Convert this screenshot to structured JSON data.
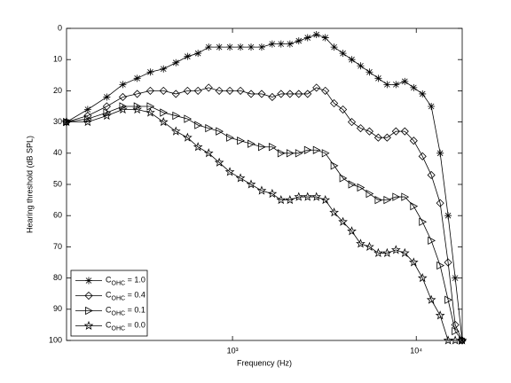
{
  "chart_data": {
    "type": "line",
    "xlabel": "Frequency (Hz)",
    "ylabel": "Hearing threshold (dB SPL)",
    "x": [
      125,
      163,
      207,
      253,
      303,
      357,
      421,
      492,
      569,
      649,
      742,
      847,
      967,
      1105,
      1262,
      1441,
      1645,
      1837,
      2054,
      2294,
      2563,
      2863,
      3199,
      3572,
      3990,
      4457,
      4978,
      5561,
      6212,
      6938,
      7750,
      8660,
      9680,
      10810,
      12070,
      13490,
      14900,
      16290,
      17780
    ],
    "series": [
      {
        "name": "COHC = 1.0",
        "color": "#000000",
        "marker": "asterisk",
        "values": [
          30,
          26,
          22,
          18,
          16,
          14,
          13,
          11,
          9,
          8,
          6,
          6,
          6,
          6,
          6,
          6,
          5,
          5,
          5,
          4,
          3,
          2,
          3,
          6,
          8,
          10,
          12,
          14,
          16,
          18,
          18,
          17,
          19,
          21,
          25,
          40,
          60,
          80,
          100
        ]
      },
      {
        "name": "COHC = 0.4",
        "color": "#000000",
        "marker": "diamond",
        "values": [
          30,
          28,
          25,
          22,
          21,
          20,
          20,
          21,
          20,
          20,
          19,
          20,
          20,
          20,
          21,
          21,
          22,
          21,
          21,
          21,
          21,
          19,
          20,
          24,
          26,
          30,
          32,
          33,
          35,
          35,
          33,
          33,
          36,
          41,
          47,
          56,
          75,
          95,
          100
        ]
      },
      {
        "name": "COHC = 0.1",
        "color": "#000000",
        "marker": "triangle-right",
        "values": [
          30,
          29,
          27,
          25,
          25,
          25,
          27,
          28,
          29,
          31,
          32,
          33,
          35,
          36,
          37,
          38,
          38,
          40,
          40,
          40,
          39,
          39,
          40,
          44,
          48,
          50,
          51,
          53,
          55,
          55,
          54,
          54,
          57,
          62,
          68,
          76,
          87,
          97,
          100
        ]
      },
      {
        "name": "COHC = 0.0",
        "color": "#000000",
        "marker": "pentagram",
        "values": [
          30,
          30,
          28,
          26,
          26,
          27,
          30,
          33,
          35,
          38,
          40,
          43,
          46,
          48,
          50,
          52,
          53,
          55,
          55,
          54,
          54,
          54,
          55,
          59,
          62,
          65,
          69,
          70,
          72,
          72,
          71,
          72,
          75,
          80,
          87,
          92,
          100,
          100,
          100
        ]
      }
    ],
    "xscale": "log",
    "xlim": [
      125,
      17780
    ],
    "xticks": [
      {
        "value": 1000,
        "label": "10³"
      },
      {
        "value": 10000,
        "label": "10⁴"
      }
    ],
    "ylim": [
      0,
      100
    ],
    "yreverse": true,
    "yticks": [
      0,
      10,
      20,
      30,
      40,
      50,
      60,
      70,
      80,
      90,
      100
    ],
    "grid": false,
    "legend": "southwest"
  }
}
